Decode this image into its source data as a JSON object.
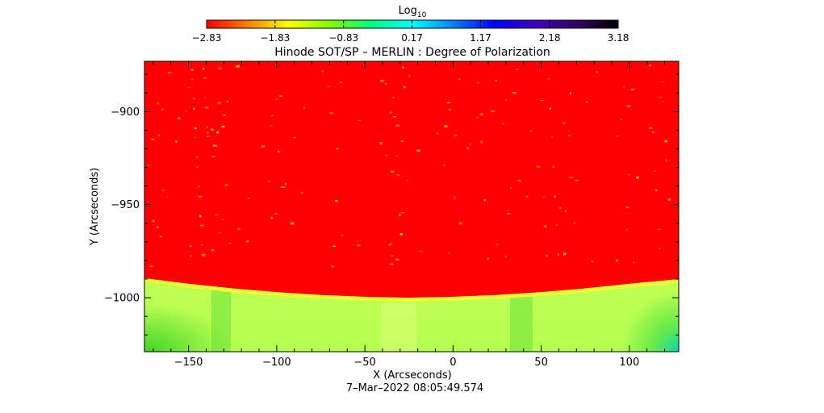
{
  "chart_data": {
    "type": "heatmap",
    "title": "Hinode SOT/SP – MERLIN : Degree of Polarization",
    "xlabel": "X (Arcseconds)",
    "ylabel": "Y (Arcseconds)",
    "timestamp": "7–Mar–2022 08:05:49.574",
    "xlim": [
      -175,
      128
    ],
    "ylim": [
      -1029,
      -873
    ],
    "x_ticks": [
      -150,
      -100,
      -50,
      0,
      50,
      100
    ],
    "x_tick_labels": [
      "−150",
      "−100",
      "−50",
      "0",
      "50",
      "100"
    ],
    "y_ticks": [
      -900,
      -950,
      -1000
    ],
    "y_tick_labels": [
      "−900",
      "−950",
      "−1000"
    ],
    "colorbar": {
      "label_base": "Log",
      "label_sub": "10",
      "ticks": [
        -2.83,
        -1.83,
        -0.83,
        0.17,
        1.17,
        2.18,
        3.18
      ],
      "tick_labels": [
        "−2.83",
        "−1.83",
        "−0.83",
        "0.17",
        "1.17",
        "2.18",
        "3.18"
      ],
      "colormap": [
        "#ff0000",
        "#ff8000",
        "#ffff00",
        "#80ff00",
        "#00ff80",
        "#00ffff",
        "#0080ff",
        "#0000ff",
        "#4000c0",
        "#300060",
        "#000000"
      ]
    },
    "limb": {
      "x": [
        -175,
        -150,
        -125,
        -100,
        -75,
        -50,
        -25,
        0,
        25,
        50,
        75,
        100,
        128
      ],
      "y": [
        -989.5,
        -992.5,
        -995,
        -997,
        -998.5,
        -999.5,
        -1000,
        -999.5,
        -998.5,
        -997,
        -995,
        -992.5,
        -990
      ]
    },
    "colors": {
      "disk": "#ff0000",
      "off_limb": "#c8ff50",
      "limb_band": "#e6ff3c",
      "corner": "#50e628",
      "dots": "#ffcc00"
    }
  }
}
